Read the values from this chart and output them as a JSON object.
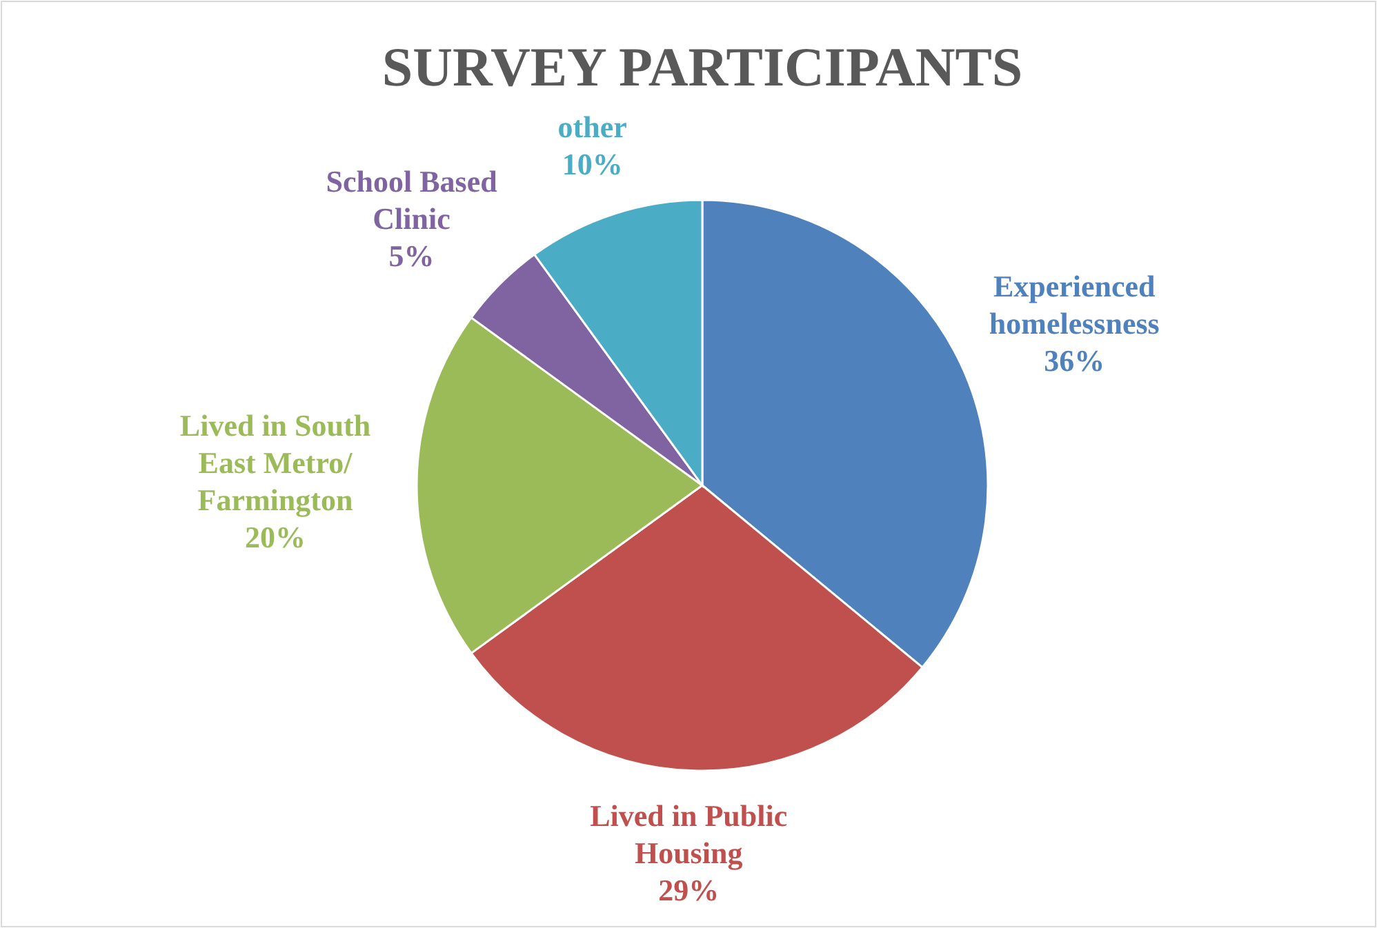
{
  "chart_data": {
    "type": "pie",
    "title": "SURVEY PARTICIPANTS",
    "categories": [
      "Experienced homelessness",
      "Lived in Public Housing",
      "Lived in South East Metro/ Farmington",
      "School Based Clinic",
      "other"
    ],
    "values": [
      36,
      29,
      20,
      5,
      10
    ],
    "value_labels": [
      "36%",
      "29%",
      "20%",
      "5%",
      "10%"
    ],
    "colors": [
      "#4f81bd",
      "#c0504d",
      "#9bbb59",
      "#8064a2",
      "#4bacc6"
    ]
  }
}
